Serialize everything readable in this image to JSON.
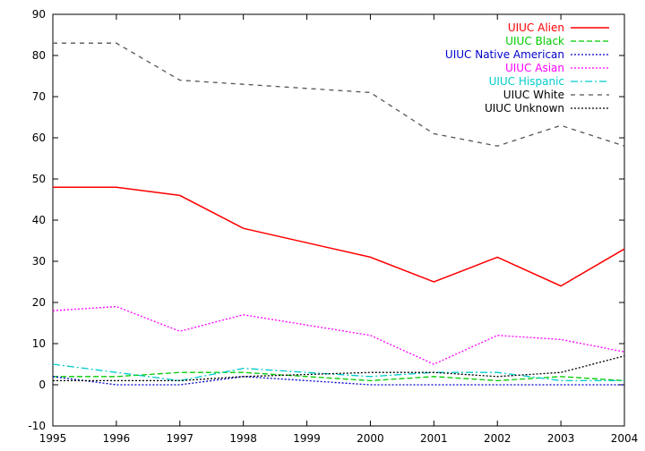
{
  "chart_data": {
    "type": "line",
    "title": "",
    "xlabel": "",
    "ylabel": "",
    "x": [
      1995,
      1996,
      1997,
      1998,
      1999,
      2000,
      2001,
      2002,
      2003,
      2004
    ],
    "xlim": [
      1995,
      2004
    ],
    "ylim": [
      -10,
      90
    ],
    "xticks": [
      1995,
      1996,
      1997,
      1998,
      1999,
      2000,
      2001,
      2002,
      2003,
      2004
    ],
    "yticks": [
      -10,
      0,
      10,
      20,
      30,
      40,
      50,
      60,
      70,
      80,
      90
    ],
    "grid": false,
    "legend_position": "top-right",
    "series": [
      {
        "name": "UIUC Alien",
        "color": "#ff0000",
        "dash": "solid",
        "values": [
          48,
          48,
          46,
          38,
          34.5,
          31,
          25,
          31,
          24,
          33
        ]
      },
      {
        "name": "UIUC Black",
        "color": "#00cc00",
        "dash": "dashed",
        "values": [
          2,
          2,
          3,
          3,
          2,
          1,
          2,
          1,
          2,
          1
        ]
      },
      {
        "name": "UIUC Native American",
        "color": "#0000cc",
        "dash": "dotted",
        "values": [
          2,
          0,
          0,
          2,
          1,
          0,
          0,
          0,
          0,
          0
        ]
      },
      {
        "name": "UIUC Asian",
        "color": "#ff00ff",
        "dash": "dotted",
        "values": [
          18,
          19,
          13,
          17,
          14.5,
          12,
          5,
          12,
          11,
          8
        ]
      },
      {
        "name": "UIUC Hispanic",
        "color": "#00cccc",
        "dash": "dashdot",
        "values": [
          5,
          3,
          1,
          4,
          3,
          2,
          3,
          3,
          1,
          1
        ]
      },
      {
        "name": "UIUC White",
        "color": "#555555",
        "dash": "longdash",
        "values": [
          83,
          83,
          74,
          73,
          72,
          71,
          61,
          58,
          63,
          58
        ]
      },
      {
        "name": "UIUC Unknown",
        "color": "#000000",
        "dash": "dotted",
        "values": [
          1,
          1,
          1,
          2,
          2.5,
          3,
          3,
          2,
          3,
          7
        ]
      }
    ]
  }
}
